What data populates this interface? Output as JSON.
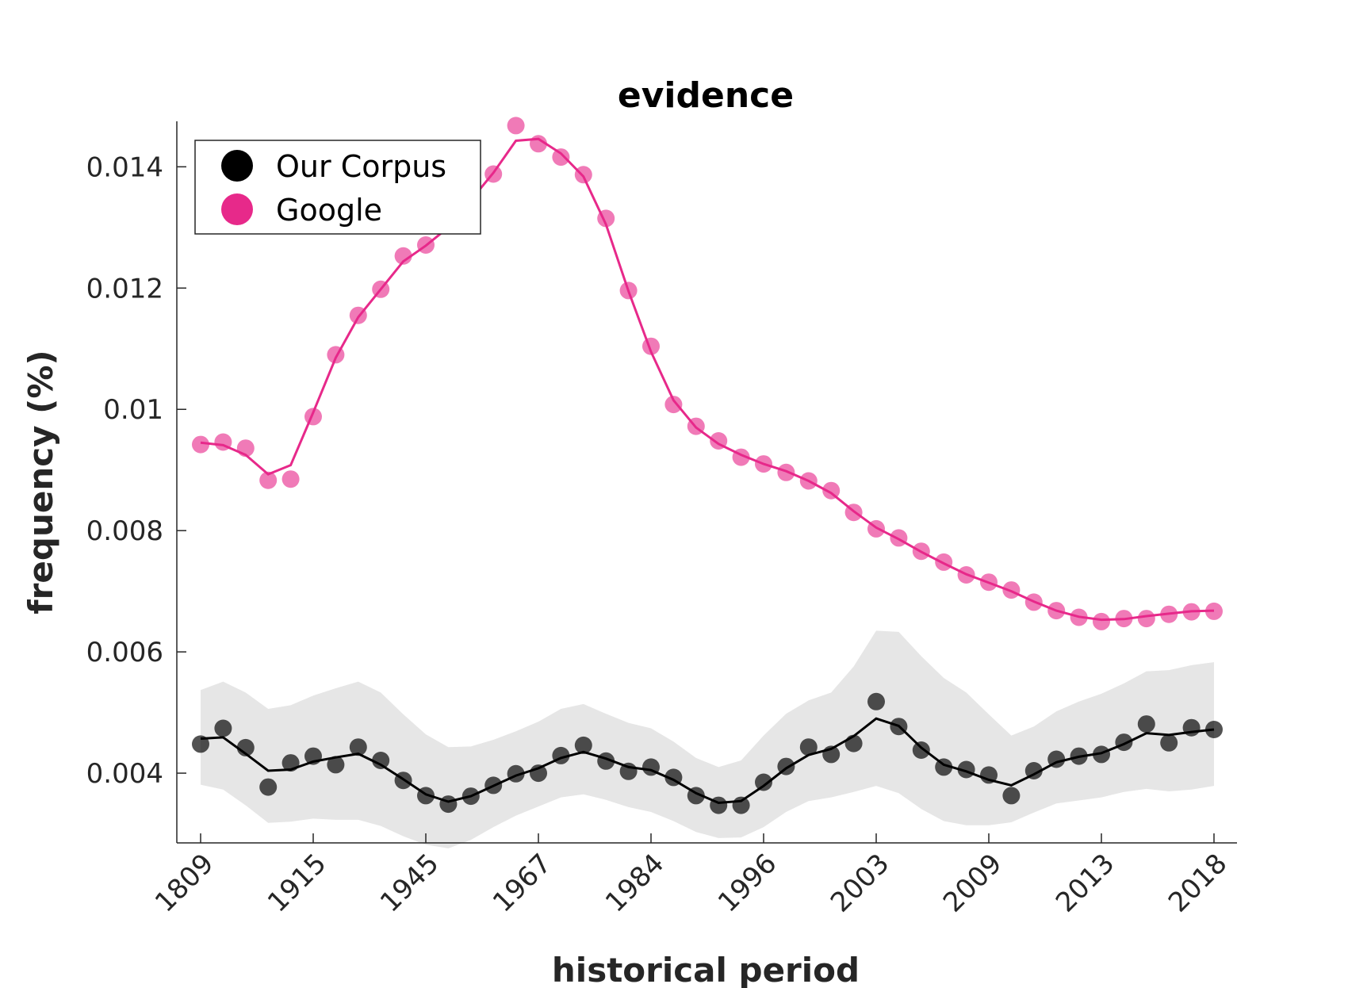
{
  "chart_data": {
    "type": "line",
    "title": "evidence",
    "xlabel": "historical period",
    "ylabel": "frequency (%)",
    "ylim": [
      0.00285,
      0.01475
    ],
    "x_ticks": [
      "1809",
      "1915",
      "1945",
      "1967",
      "1984",
      "1996",
      "2003",
      "2009",
      "2013",
      "2018"
    ],
    "y_ticks": [
      "0.004",
      "0.006",
      "0.008",
      "0.01",
      "0.012",
      "0.014"
    ],
    "grid": false,
    "legend": {
      "placement": "top-left",
      "entries": [
        {
          "label": "Our Corpus",
          "color": "#000000"
        },
        {
          "label": "Google",
          "color": "#e7298a"
        }
      ]
    },
    "n_points": 46,
    "series": [
      {
        "name": "Google",
        "color": "#e7298a",
        "points": [
          0.00942,
          0.00946,
          0.00936,
          0.00883,
          0.00885,
          0.00988,
          0.0109,
          0.01155,
          0.01198,
          0.01253,
          0.01271,
          0.01328,
          0.01348,
          0.01388,
          0.01468,
          0.01438,
          0.01416,
          0.01387,
          0.01315,
          0.01196,
          0.01104,
          0.01008,
          0.00972,
          0.00948,
          0.00921,
          0.0091,
          0.00896,
          0.00882,
          0.00866,
          0.0083,
          0.00803,
          0.00788,
          0.00766,
          0.00748,
          0.00727,
          0.00715,
          0.00702,
          0.00682,
          0.00668,
          0.00657,
          0.0065,
          0.00655,
          0.00655,
          0.00662,
          0.00666,
          0.00667
        ],
        "smoothed": [
          0.00945,
          0.00941,
          0.00925,
          0.00893,
          0.00908,
          0.00995,
          0.01085,
          0.01152,
          0.01198,
          0.01244,
          0.0127,
          0.013,
          0.01345,
          0.0139,
          0.01443,
          0.01446,
          0.01422,
          0.01384,
          0.01305,
          0.01195,
          0.01095,
          0.01015,
          0.0097,
          0.00943,
          0.00925,
          0.0091,
          0.00898,
          0.00882,
          0.00862,
          0.00832,
          0.00805,
          0.00786,
          0.00765,
          0.00746,
          0.00728,
          0.00714,
          0.007,
          0.00683,
          0.00668,
          0.00658,
          0.00653,
          0.00654,
          0.00659,
          0.00663,
          0.00667,
          0.00668
        ]
      },
      {
        "name": "Our Corpus",
        "color": "#000000",
        "points": [
          0.00448,
          0.00474,
          0.00442,
          0.00377,
          0.00417,
          0.00428,
          0.00414,
          0.00443,
          0.00421,
          0.00388,
          0.00363,
          0.00349,
          0.00362,
          0.0038,
          0.00399,
          0.004,
          0.00429,
          0.00446,
          0.0042,
          0.00403,
          0.0041,
          0.00393,
          0.00363,
          0.00347,
          0.00347,
          0.00385,
          0.00411,
          0.00443,
          0.00431,
          0.00449,
          0.00518,
          0.00477,
          0.00438,
          0.0041,
          0.00406,
          0.00397,
          0.00363,
          0.00404,
          0.00423,
          0.00428,
          0.00431,
          0.00451,
          0.00481,
          0.0045,
          0.00475,
          0.00472
        ],
        "smoothed": [
          0.00457,
          0.00459,
          0.00432,
          0.00404,
          0.00406,
          0.00419,
          0.00426,
          0.00432,
          0.00414,
          0.0039,
          0.00365,
          0.00353,
          0.00362,
          0.00379,
          0.00396,
          0.00408,
          0.00425,
          0.00435,
          0.00424,
          0.0041,
          0.00405,
          0.00389,
          0.00367,
          0.00351,
          0.00354,
          0.00379,
          0.00408,
          0.0043,
          0.0044,
          0.00461,
          0.0049,
          0.00478,
          0.00442,
          0.00414,
          0.00403,
          0.00389,
          0.0038,
          0.00398,
          0.00418,
          0.00427,
          0.00433,
          0.00448,
          0.00466,
          0.00463,
          0.00468,
          0.00472
        ],
        "band_upper": [
          0.00537,
          0.00551,
          0.00533,
          0.00506,
          0.00512,
          0.00528,
          0.0054,
          0.00551,
          0.00533,
          0.00497,
          0.00464,
          0.00443,
          0.00444,
          0.00455,
          0.00469,
          0.00485,
          0.00506,
          0.00514,
          0.00498,
          0.00483,
          0.00474,
          0.00452,
          0.00425,
          0.0041,
          0.00421,
          0.00462,
          0.00498,
          0.0052,
          0.00533,
          0.00576,
          0.00635,
          0.00633,
          0.00593,
          0.00557,
          0.00533,
          0.00497,
          0.00462,
          0.00477,
          0.00502,
          0.00518,
          0.00531,
          0.00548,
          0.00568,
          0.0057,
          0.00578,
          0.00583
        ],
        "band_lower": [
          0.00381,
          0.00373,
          0.00347,
          0.00318,
          0.0032,
          0.00325,
          0.00323,
          0.00323,
          0.00313,
          0.00296,
          0.00282,
          0.00276,
          0.0029,
          0.00311,
          0.0033,
          0.00345,
          0.0036,
          0.00365,
          0.00356,
          0.00344,
          0.00336,
          0.00321,
          0.00303,
          0.00293,
          0.00294,
          0.00311,
          0.00336,
          0.00354,
          0.0036,
          0.00369,
          0.00379,
          0.00367,
          0.00341,
          0.00321,
          0.00314,
          0.00314,
          0.00319,
          0.00335,
          0.0035,
          0.00355,
          0.0036,
          0.00369,
          0.00374,
          0.0037,
          0.00373,
          0.00379
        ]
      }
    ]
  }
}
